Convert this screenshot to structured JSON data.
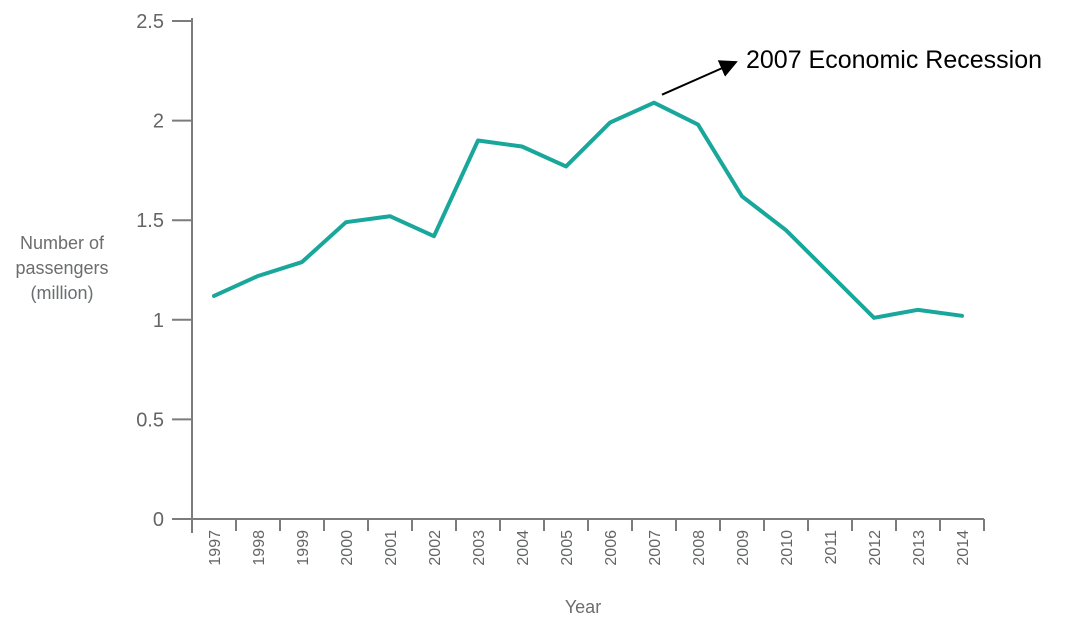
{
  "chart_data": {
    "type": "line",
    "title": "",
    "x": [
      "1997",
      "1998",
      "1999",
      "2000",
      "2001",
      "2002",
      "2003",
      "2004",
      "2005",
      "2006",
      "2007",
      "2008",
      "2009",
      "2010",
      "2011",
      "2012",
      "2013",
      "2014"
    ],
    "series": [
      {
        "name": "Number of passengers (million)",
        "values": [
          1.12,
          1.22,
          1.29,
          1.49,
          1.52,
          1.42,
          1.9,
          1.87,
          1.77,
          1.99,
          2.09,
          1.98,
          1.62,
          1.45,
          1.23,
          1.01,
          1.05,
          1.02
        ],
        "color": "#19a79c"
      }
    ],
    "xlabel": "Year",
    "ylabel_lines": [
      "Number of",
      "passengers",
      "(million)"
    ],
    "y_ticks": [
      0,
      0.5,
      1,
      1.5,
      2,
      2.5
    ],
    "y_tick_labels": [
      "0",
      "0.5",
      "1",
      "1.5",
      "2",
      "2.5"
    ],
    "ylim": [
      0,
      2.5
    ],
    "grid": false,
    "legend": "none",
    "annotation": {
      "text": "2007 Economic Recession",
      "target_year": "2007",
      "target_value": 2.09
    }
  },
  "colors": {
    "line": "#19a79c",
    "axis": "#7a7c7e",
    "tick_label": "#636567",
    "axis_title": "#6b6d6f",
    "annotation_text": "#000000",
    "background": "#ffffff"
  }
}
